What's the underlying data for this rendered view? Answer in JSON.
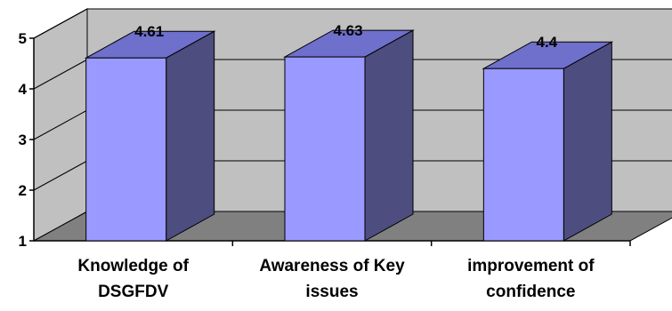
{
  "chart_data": {
    "type": "bar",
    "style": "3d-column",
    "categories": [
      [
        "Knowledge of",
        "DSGFDV"
      ],
      [
        "Awareness of Key",
        "issues"
      ],
      [
        "improvement of",
        "confidence"
      ]
    ],
    "values": [
      4.61,
      4.63,
      4.4
    ],
    "data_labels": [
      "4.61",
      "4.63",
      "4.4"
    ],
    "ylim": [
      1,
      5
    ],
    "yticks": [
      "1",
      "2",
      "3",
      "4",
      "5"
    ],
    "grid": true,
    "legend": "none",
    "colors": {
      "bar_front": "#9999ff",
      "bar_side": "#4d4d80",
      "bar_top": "#6f6fcc",
      "wall": "#c0c0c0",
      "floor": "#808080",
      "gridline": "#000000"
    }
  }
}
